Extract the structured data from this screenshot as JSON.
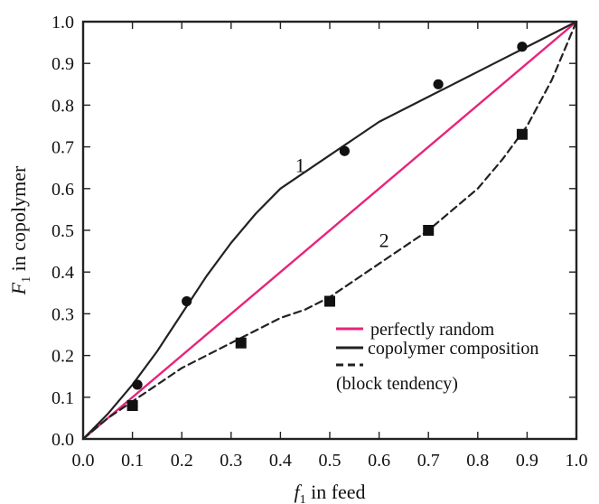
{
  "chart_data": {
    "type": "line",
    "title": "",
    "xlabel": {
      "main": "f",
      "sub": "1",
      "suffix": " in feed"
    },
    "ylabel": {
      "main": "F",
      "sub": "1",
      "suffix": " in copolymer"
    },
    "xlim": [
      0.0,
      1.0
    ],
    "ylim": [
      0.0,
      1.0
    ],
    "xticks": [
      "0.0",
      "0.1",
      "0.2",
      "0.3",
      "0.4",
      "0.5",
      "0.6",
      "0.7",
      "0.8",
      "0.9",
      "1.0"
    ],
    "yticks": [
      "0.0",
      "0.1",
      "0.2",
      "0.3",
      "0.4",
      "0.5",
      "0.6",
      "0.7",
      "0.8",
      "0.9",
      "1.0"
    ],
    "grid": false,
    "legend_position": "lower-right",
    "series": [
      {
        "name": "perfectly random",
        "style": "solid",
        "color": "#e8237a",
        "x": [
          0.0,
          1.0
        ],
        "y": [
          0.0,
          1.0
        ]
      },
      {
        "curve_label": "1",
        "style": "solid",
        "color": "#222222",
        "x": [
          0.0,
          0.05,
          0.1,
          0.15,
          0.2,
          0.25,
          0.3,
          0.35,
          0.4,
          0.45,
          0.5,
          0.55,
          0.6,
          0.65,
          0.7,
          0.75,
          0.8,
          0.85,
          0.9,
          0.95,
          1.0
        ],
        "y": [
          0.0,
          0.06,
          0.13,
          0.21,
          0.3,
          0.39,
          0.47,
          0.54,
          0.6,
          0.64,
          0.68,
          0.72,
          0.76,
          0.79,
          0.82,
          0.85,
          0.88,
          0.91,
          0.94,
          0.97,
          1.0
        ],
        "points": {
          "marker": "circle",
          "x": [
            0.11,
            0.21,
            0.53,
            0.72,
            0.89
          ],
          "y": [
            0.13,
            0.33,
            0.69,
            0.85,
            0.94
          ]
        }
      },
      {
        "curve_label": "2",
        "style": "dashed",
        "color": "#222222",
        "x": [
          0.0,
          0.05,
          0.1,
          0.15,
          0.2,
          0.25,
          0.3,
          0.35,
          0.4,
          0.45,
          0.5,
          0.55,
          0.6,
          0.65,
          0.7,
          0.75,
          0.8,
          0.85,
          0.9,
          0.95,
          1.0
        ],
        "y": [
          0.0,
          0.05,
          0.09,
          0.13,
          0.17,
          0.2,
          0.23,
          0.26,
          0.29,
          0.31,
          0.34,
          0.38,
          0.42,
          0.46,
          0.5,
          0.55,
          0.6,
          0.67,
          0.75,
          0.86,
          1.0
        ],
        "points": {
          "marker": "square",
          "x": [
            0.1,
            0.32,
            0.5,
            0.7,
            0.89
          ],
          "y": [
            0.08,
            0.23,
            0.33,
            0.5,
            0.73
          ]
        }
      }
    ],
    "legend_entries": [
      {
        "label": "perfectly random",
        "style": "solid",
        "color": "#e8237a"
      },
      {
        "label": "copolymer composition",
        "style": "solid",
        "color": "#222222"
      },
      {
        "label": "(block tendency)",
        "style": "dashed",
        "color": "#222222"
      }
    ]
  }
}
